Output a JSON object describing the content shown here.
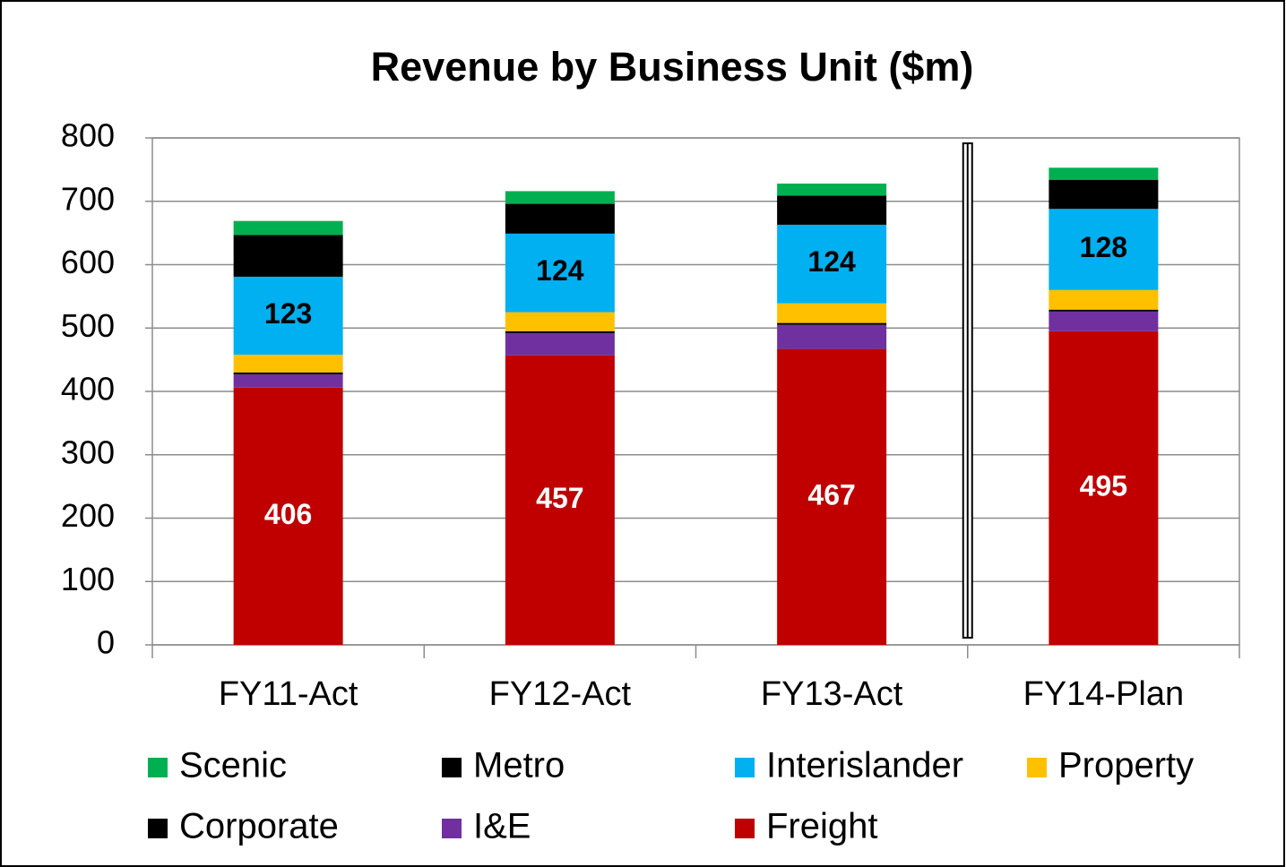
{
  "chart_data": {
    "type": "stacked_bar",
    "title": "Revenue by Business Unit ($m)",
    "categories": [
      "FY11-Act",
      "FY12-Act",
      "FY13-Act",
      "FY14-Plan"
    ],
    "series": [
      {
        "name": "Scenic",
        "color": "#00b050",
        "values": [
          22,
          20,
          19,
          19
        ]
      },
      {
        "name": "Metro",
        "color": "#000000",
        "values": [
          66,
          47,
          46,
          46
        ]
      },
      {
        "name": "Interislander",
        "color": "#00b0f0",
        "values": [
          123,
          124,
          124,
          128
        ],
        "data_labels": true,
        "label_color": "#000000"
      },
      {
        "name": "Property",
        "color": "#ffc000",
        "values": [
          28,
          30,
          31,
          31
        ]
      },
      {
        "name": "Corporate",
        "color": "#000000",
        "values": [
          3,
          3,
          3,
          3
        ]
      },
      {
        "name": "I&E",
        "color": "#7030a0",
        "values": [
          21,
          35,
          38,
          31
        ]
      },
      {
        "name": "Freight",
        "color": "#c00000",
        "values": [
          406,
          457,
          467,
          495
        ],
        "data_labels": true,
        "label_color": "#ffffff"
      }
    ],
    "ylim": [
      0,
      800
    ],
    "yticks": [
      0,
      100,
      200,
      300,
      400,
      500,
      600,
      700,
      800
    ],
    "grid": true
  }
}
